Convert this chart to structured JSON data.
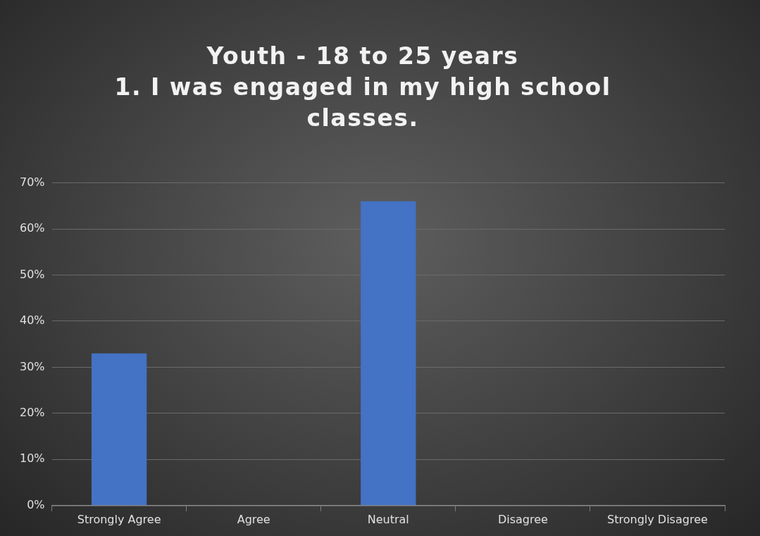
{
  "chart_data": {
    "type": "bar",
    "title": "Youth - 18 to 25 years\n1. I was engaged in my high school classes.",
    "categories": [
      "Strongly Agree",
      "Agree",
      "Neutral",
      "Disagree",
      "Strongly Disagree"
    ],
    "values": [
      33,
      0,
      66,
      0,
      0
    ],
    "color": "#4472c4",
    "ylim": [
      0,
      70
    ],
    "yticks": [
      {
        "value": 0,
        "label": "0%"
      },
      {
        "value": 10,
        "label": "10%"
      },
      {
        "value": 20,
        "label": "20%"
      },
      {
        "value": 30,
        "label": "30%"
      },
      {
        "value": 40,
        "label": "40%"
      },
      {
        "value": 50,
        "label": "50%"
      },
      {
        "value": 60,
        "label": "60%"
      },
      {
        "value": 70,
        "label": "70%"
      }
    ],
    "grid": "y"
  }
}
